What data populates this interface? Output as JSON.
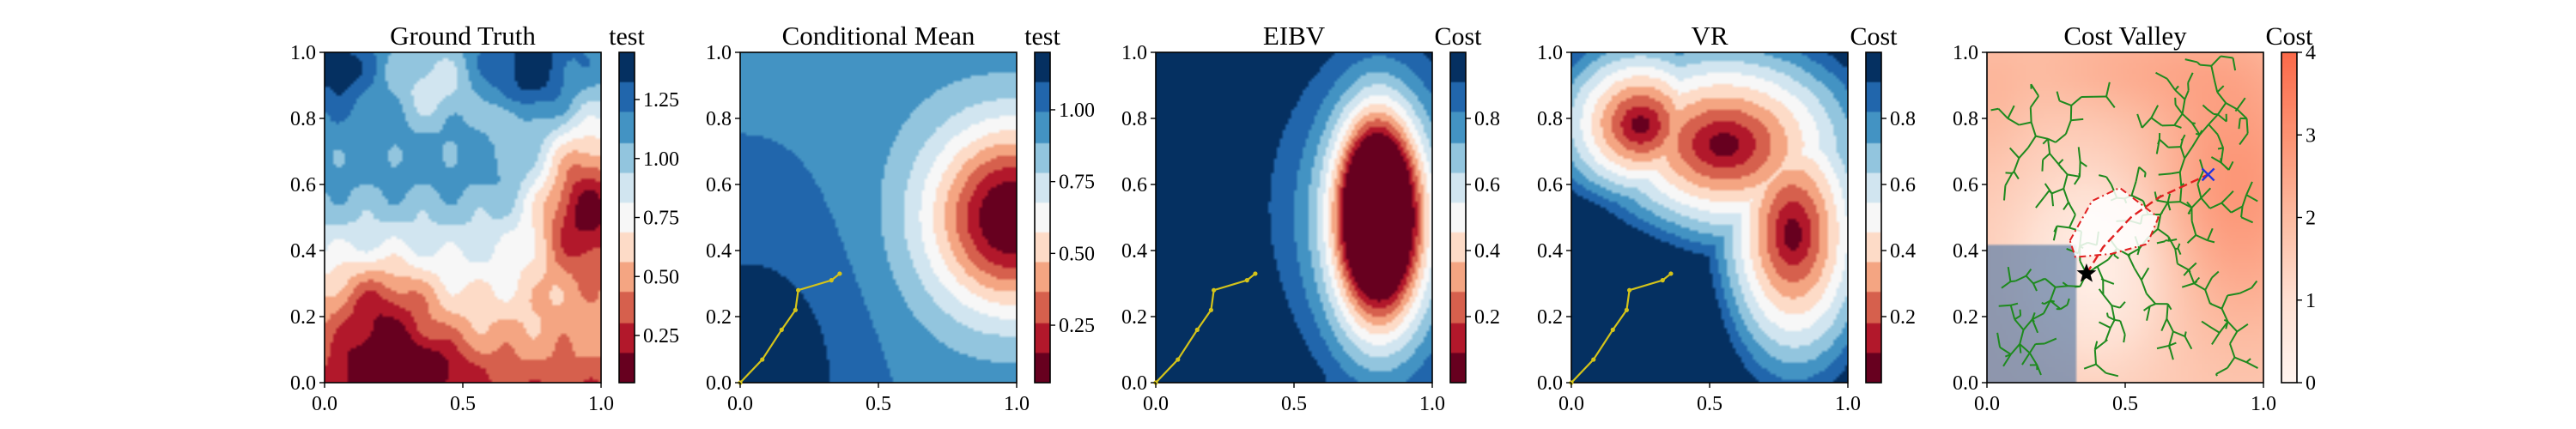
{
  "chart_data": [
    {
      "type": "heatmap",
      "title": "Ground Truth",
      "colorbar_title": "test",
      "colormap": "RdBu",
      "field": "ground_truth",
      "xlim": [
        0,
        1
      ],
      "ylim": [
        0,
        1
      ],
      "xticks": [
        "0.0",
        "0.5",
        "1.0"
      ],
      "yticks": [
        "0.0",
        "0.2",
        "0.4",
        "0.6",
        "0.8",
        "1.0"
      ],
      "colorbar_range": [
        0.05,
        1.45
      ],
      "colorbar_ticks": [
        {
          "value": 0.25,
          "label": "0.25"
        },
        {
          "value": 0.5,
          "label": "0.50"
        },
        {
          "value": 0.75,
          "label": "0.75"
        },
        {
          "value": 1.0,
          "label": "1.00"
        },
        {
          "value": 1.25,
          "label": "1.25"
        }
      ],
      "hotspot": {
        "x": 0.97,
        "y": 0.53,
        "value": 0.05
      }
    },
    {
      "type": "heatmap",
      "title": "Conditional Mean",
      "colorbar_title": "test",
      "colormap": "RdBu",
      "field": "conditional_mean",
      "xlim": [
        0,
        1
      ],
      "ylim": [
        0,
        1
      ],
      "xticks": [
        "0.0",
        "0.5",
        "1.0"
      ],
      "yticks": [
        "0.0",
        "0.2",
        "0.4",
        "0.6",
        "0.8",
        "1.0"
      ],
      "colorbar_range": [
        0.05,
        1.2
      ],
      "colorbar_ticks": [
        {
          "value": 0.25,
          "label": "0.25"
        },
        {
          "value": 0.5,
          "label": "0.50"
        },
        {
          "value": 0.75,
          "label": "0.75"
        },
        {
          "value": 1.0,
          "label": "1.00"
        }
      ],
      "path": [
        [
          0.0,
          0.0
        ],
        [
          0.08,
          0.07
        ],
        [
          0.15,
          0.16
        ],
        [
          0.2,
          0.22
        ],
        [
          0.21,
          0.28
        ],
        [
          0.33,
          0.31
        ],
        [
          0.36,
          0.33
        ]
      ]
    },
    {
      "type": "heatmap",
      "title": "EIBV",
      "colorbar_title": "Cost",
      "colormap": "RdBu",
      "field": "eibv",
      "xlim": [
        0,
        1
      ],
      "ylim": [
        0,
        1
      ],
      "xticks": [
        "0.0",
        "0.5",
        "1.0"
      ],
      "yticks": [
        "0.0",
        "0.2",
        "0.4",
        "0.6",
        "0.8",
        "1.0"
      ],
      "colorbar_range": [
        0.0,
        1.0
      ],
      "colorbar_ticks": [
        {
          "value": 0.2,
          "label": "0.2"
        },
        {
          "value": 0.4,
          "label": "0.4"
        },
        {
          "value": 0.6,
          "label": "0.6"
        },
        {
          "value": 0.8,
          "label": "0.8"
        }
      ],
      "path": [
        [
          0.0,
          0.0
        ],
        [
          0.08,
          0.07
        ],
        [
          0.15,
          0.16
        ],
        [
          0.2,
          0.22
        ],
        [
          0.21,
          0.28
        ],
        [
          0.33,
          0.31
        ],
        [
          0.36,
          0.33
        ]
      ]
    },
    {
      "type": "heatmap",
      "title": "VR",
      "colorbar_title": "Cost",
      "colormap": "RdBu",
      "field": "vr",
      "xlim": [
        0,
        1
      ],
      "ylim": [
        0,
        1
      ],
      "xticks": [
        "0.0",
        "0.5",
        "1.0"
      ],
      "yticks": [
        "0.0",
        "0.2",
        "0.4",
        "0.6",
        "0.8",
        "1.0"
      ],
      "colorbar_range": [
        0.0,
        1.0
      ],
      "colorbar_ticks": [
        {
          "value": 0.2,
          "label": "0.2"
        },
        {
          "value": 0.4,
          "label": "0.4"
        },
        {
          "value": 0.6,
          "label": "0.6"
        },
        {
          "value": 0.8,
          "label": "0.8"
        }
      ],
      "path": [
        [
          0.0,
          0.0
        ],
        [
          0.08,
          0.07
        ],
        [
          0.15,
          0.16
        ],
        [
          0.2,
          0.22
        ],
        [
          0.21,
          0.28
        ],
        [
          0.33,
          0.31
        ],
        [
          0.36,
          0.33
        ]
      ]
    },
    {
      "type": "heatmap",
      "title": "Cost Valley",
      "colorbar_title": "Cost",
      "colormap": "Reds",
      "field": "cost_valley",
      "xlim": [
        0,
        1
      ],
      "ylim": [
        0,
        1
      ],
      "xticks": [
        "0.0",
        "0.5",
        "1.0"
      ],
      "yticks": [
        "0.0",
        "0.2",
        "0.4",
        "0.6",
        "0.8",
        "1.0"
      ],
      "colorbar_range": [
        0,
        4
      ],
      "colorbar_ticks": [
        {
          "value": 0,
          "label": "0"
        },
        {
          "value": 1,
          "label": "1"
        },
        {
          "value": 2,
          "label": "2"
        },
        {
          "value": 3,
          "label": "3"
        },
        {
          "value": 4,
          "label": "4"
        }
      ],
      "current_location": {
        "x": 0.36,
        "y": 0.33
      },
      "target_location": {
        "x": 0.8,
        "y": 0.63
      },
      "planned_route": [
        [
          0.36,
          0.33
        ],
        [
          0.42,
          0.41
        ],
        [
          0.52,
          0.5
        ],
        [
          0.62,
          0.56
        ],
        [
          0.8,
          0.63
        ]
      ],
      "boundary": [
        [
          0.3,
          0.43
        ],
        [
          0.38,
          0.55
        ],
        [
          0.48,
          0.59
        ],
        [
          0.62,
          0.5
        ],
        [
          0.58,
          0.42
        ],
        [
          0.45,
          0.39
        ],
        [
          0.32,
          0.38
        ]
      ],
      "colors": {
        "tree": "#1e8a1e",
        "route": "#e02020",
        "target_marker": "#2233dd",
        "path": "#d4c31a",
        "mask": "#5f7fa8"
      }
    }
  ]
}
